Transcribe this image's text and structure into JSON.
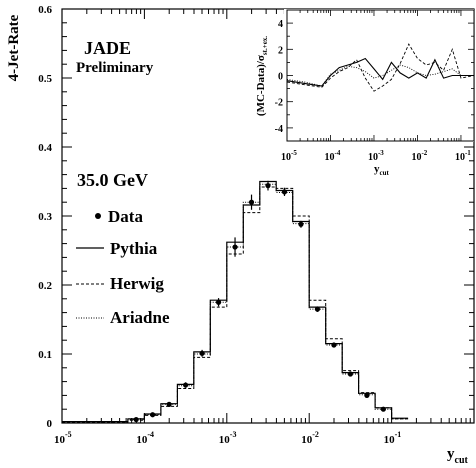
{
  "chart_data": [
    {
      "type": "step",
      "ylabel": "4-Jet-Rate",
      "xlabel_main": "y",
      "xlabel_sub": "cut",
      "xscale": "log",
      "xlim_exp": [
        -5,
        0
      ],
      "ylim": [
        0,
        0.6
      ],
      "y_ticks": [
        "0",
        "0.1",
        "0.2",
        "0.3",
        "0.4",
        "0.5",
        "0.6"
      ],
      "x_ticks": [
        {
          "base": "10",
          "exp": "-5"
        },
        {
          "base": "10",
          "exp": "-4"
        },
        {
          "base": "10",
          "exp": "-3"
        },
        {
          "base": "10",
          "exp": "-2"
        },
        {
          "base": "10",
          "exp": "-1"
        }
      ],
      "annotations": {
        "experiment": "JADE",
        "status": "Preliminary",
        "energy": "35.0 GeV"
      },
      "legend": {
        "placement": "left",
        "entries": [
          {
            "label": "Data",
            "style": "marker"
          },
          {
            "label": "Pythia",
            "style": "solid"
          },
          {
            "label": "Herwig",
            "style": "dashed"
          },
          {
            "label": "Ariadne",
            "style": "dotted"
          }
        ]
      },
      "data": {
        "x_log10": [
          -4.1,
          -3.9,
          -3.7,
          -3.5,
          -3.3,
          -3.1,
          -2.9,
          -2.7,
          -2.5,
          -2.3,
          -2.1,
          -1.9,
          -1.7,
          -1.5,
          -1.3,
          -1.1
        ],
        "y": [
          0.005,
          0.012,
          0.027,
          0.055,
          0.101,
          0.175,
          0.255,
          0.32,
          0.344,
          0.335,
          0.288,
          0.165,
          0.113,
          0.071,
          0.04,
          0.02
        ],
        "yerr": [
          0.002,
          0.003,
          0.003,
          0.004,
          0.005,
          0.006,
          0.014,
          0.011,
          0.007,
          0.006,
          0.005,
          0.004,
          0.003,
          0.003,
          0.002,
          0.002
        ]
      },
      "series": [
        {
          "name": "Pythia",
          "style": "solid",
          "x_edges_log10": [
            -5.0,
            -4.2,
            -4.0,
            -3.8,
            -3.6,
            -3.4,
            -3.2,
            -3.0,
            -2.8,
            -2.6,
            -2.4,
            -2.2,
            -2.0,
            -1.8,
            -1.6,
            -1.4,
            -1.2,
            -1.0,
            -0.8
          ],
          "values": [
            0.002,
            0.006,
            0.013,
            0.028,
            0.056,
            0.103,
            0.178,
            0.262,
            0.316,
            0.35,
            0.337,
            0.292,
            0.168,
            0.115,
            0.073,
            0.043,
            0.022,
            0.007
          ]
        },
        {
          "name": "Herwig",
          "style": "dashed",
          "x_edges_log10": [
            -5.0,
            -4.2,
            -4.0,
            -3.8,
            -3.6,
            -3.4,
            -3.2,
            -3.0,
            -2.8,
            -2.6,
            -2.4,
            -2.2,
            -2.0,
            -1.8,
            -1.6,
            -1.4,
            -1.2,
            -1.0,
            -0.8
          ],
          "values": [
            0.001,
            0.004,
            0.011,
            0.024,
            0.05,
            0.095,
            0.168,
            0.245,
            0.305,
            0.342,
            0.34,
            0.3,
            0.178,
            0.122,
            0.076,
            0.044,
            0.022,
            0.006
          ]
        },
        {
          "name": "Ariadne",
          "style": "dotted",
          "x_edges_log10": [
            -5.0,
            -4.2,
            -4.0,
            -3.8,
            -3.6,
            -3.4,
            -3.2,
            -3.0,
            -2.8,
            -2.6,
            -2.4,
            -2.2,
            -2.0,
            -1.8,
            -1.6,
            -1.4,
            -1.2,
            -1.0,
            -0.8
          ],
          "values": [
            0.002,
            0.005,
            0.012,
            0.027,
            0.054,
            0.1,
            0.175,
            0.255,
            0.32,
            0.346,
            0.334,
            0.289,
            0.165,
            0.113,
            0.071,
            0.041,
            0.02,
            0.006
          ]
        }
      ]
    },
    {
      "type": "line",
      "placement": "inset-top-right",
      "ylabel": "(MC-Data)/σ",
      "ylabel_sub": "st.+ex.",
      "xlabel_main": "y",
      "xlabel_sub": "cut",
      "xscale": "log",
      "xlim_exp": [
        -5,
        -0.7
      ],
      "ylim": [
        -5,
        5
      ],
      "y_ticks": [
        "-4",
        "-2",
        "0",
        "2",
        "4"
      ],
      "x_ticks": [
        {
          "base": "10",
          "exp": "-5"
        },
        {
          "base": "10",
          "exp": "-4"
        },
        {
          "base": "10",
          "exp": "-3"
        },
        {
          "base": "10",
          "exp": "-2"
        },
        {
          "base": "10",
          "exp": "-1"
        }
      ],
      "series": [
        {
          "name": "Pythia",
          "style": "solid",
          "x_log10": [
            -5.0,
            -4.6,
            -4.2,
            -4.0,
            -3.8,
            -3.6,
            -3.4,
            -3.2,
            -3.0,
            -2.8,
            -2.6,
            -2.4,
            -2.2,
            -2.0,
            -1.8,
            -1.6,
            -1.4,
            -1.2,
            -1.0,
            -0.7
          ],
          "values": [
            -0.4,
            -0.6,
            -0.8,
            0.0,
            0.6,
            0.8,
            1.0,
            1.3,
            0.5,
            -0.3,
            1.0,
            0.2,
            -0.2,
            0.2,
            -0.2,
            1.2,
            -0.2,
            0.0,
            0.0,
            0.0
          ]
        },
        {
          "name": "Herwig",
          "style": "dashed",
          "x_log10": [
            -5.0,
            -4.6,
            -4.2,
            -4.0,
            -3.8,
            -3.6,
            -3.4,
            -3.2,
            -3.0,
            -2.8,
            -2.6,
            -2.4,
            -2.2,
            -2.0,
            -1.8,
            -1.6,
            -1.4,
            -1.2,
            -1.0,
            -0.7
          ],
          "values": [
            -0.5,
            -0.7,
            -0.9,
            -0.2,
            0.3,
            0.6,
            1.2,
            -0.2,
            -1.2,
            -0.8,
            -0.3,
            0.9,
            2.4,
            1.3,
            0.8,
            1.0,
            0.4,
            2.0,
            -0.2,
            0.0
          ]
        },
        {
          "name": "Ariadne",
          "style": "dotted",
          "x_log10": [
            -5.0,
            -4.6,
            -4.2,
            -4.0,
            -3.8,
            -3.6,
            -3.4,
            -3.2,
            -3.0,
            -2.8,
            -2.6,
            -2.4,
            -2.2,
            -2.0,
            -1.8,
            -1.6,
            -1.4,
            -1.2,
            -1.0,
            -0.7
          ],
          "values": [
            -0.3,
            -0.5,
            -0.8,
            0.1,
            0.4,
            0.7,
            0.6,
            0.3,
            -0.2,
            0.0,
            0.4,
            0.8,
            0.6,
            0.2,
            0.0,
            0.1,
            0.3,
            0.5,
            0.0,
            0.0
          ]
        }
      ]
    }
  ]
}
